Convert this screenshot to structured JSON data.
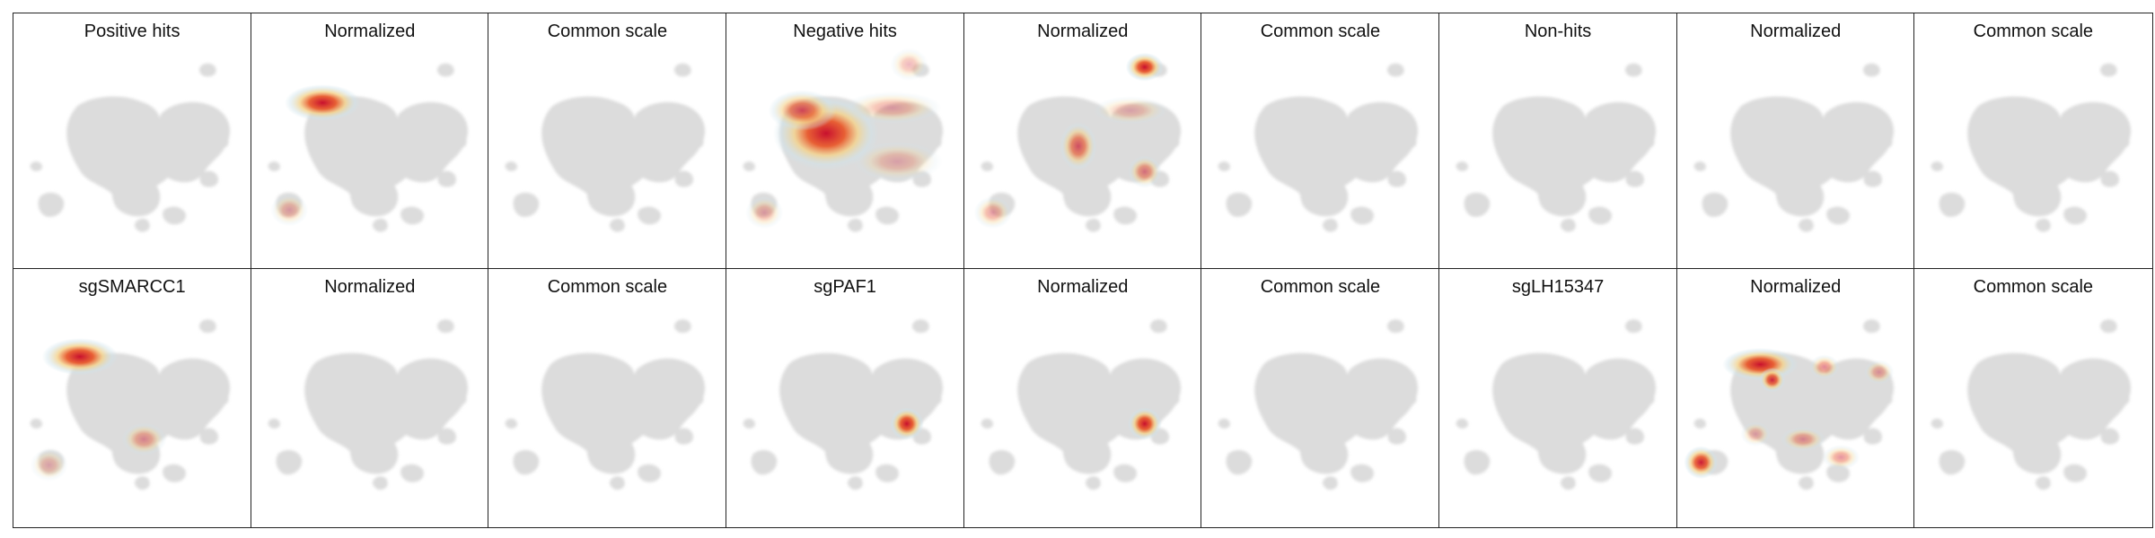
{
  "chart_data": {
    "type": "heatmap",
    "layout": {
      "rows": 2,
      "cols": 9
    },
    "panels": [
      {
        "title": "Positive hits",
        "hotspots": []
      },
      {
        "title": "Normalized",
        "hotspots": [
          {
            "x": 0.3,
            "y": 0.35,
            "intensity": 1.0,
            "rx": 0.1,
            "ry": 0.045
          },
          {
            "x": 0.16,
            "y": 0.77,
            "intensity": 0.35,
            "rx": 0.05,
            "ry": 0.04
          }
        ]
      },
      {
        "title": "Common scale",
        "hotspots": []
      },
      {
        "title": "Negative hits",
        "hotspots": [
          {
            "x": 0.42,
            "y": 0.47,
            "intensity": 1.0,
            "rx": 0.14,
            "ry": 0.09
          },
          {
            "x": 0.32,
            "y": 0.38,
            "intensity": 0.75,
            "rx": 0.09,
            "ry": 0.05
          },
          {
            "x": 0.7,
            "y": 0.37,
            "intensity": 0.35,
            "rx": 0.13,
            "ry": 0.04
          },
          {
            "x": 0.72,
            "y": 0.58,
            "intensity": 0.3,
            "rx": 0.12,
            "ry": 0.05
          },
          {
            "x": 0.16,
            "y": 0.78,
            "intensity": 0.35,
            "rx": 0.05,
            "ry": 0.04
          },
          {
            "x": 0.77,
            "y": 0.2,
            "intensity": 0.2,
            "rx": 0.05,
            "ry": 0.04
          }
        ]
      },
      {
        "title": "Normalized",
        "hotspots": [
          {
            "x": 0.76,
            "y": 0.21,
            "intensity": 1.0,
            "rx": 0.05,
            "ry": 0.035
          },
          {
            "x": 0.48,
            "y": 0.52,
            "intensity": 0.7,
            "rx": 0.05,
            "ry": 0.06
          },
          {
            "x": 0.76,
            "y": 0.62,
            "intensity": 0.55,
            "rx": 0.045,
            "ry": 0.04
          },
          {
            "x": 0.7,
            "y": 0.38,
            "intensity": 0.25,
            "rx": 0.1,
            "ry": 0.035
          },
          {
            "x": 0.12,
            "y": 0.78,
            "intensity": 0.4,
            "rx": 0.05,
            "ry": 0.04
          }
        ]
      },
      {
        "title": "Common scale",
        "hotspots": []
      },
      {
        "title": "Non-hits",
        "hotspots": []
      },
      {
        "title": "Normalized",
        "hotspots": []
      },
      {
        "title": "Common scale",
        "hotspots": []
      },
      {
        "title": "sgSMARCC1",
        "hotspots": [
          {
            "x": 0.28,
            "y": 0.34,
            "intensity": 1.0,
            "rx": 0.1,
            "ry": 0.045
          },
          {
            "x": 0.55,
            "y": 0.66,
            "intensity": 0.45,
            "rx": 0.06,
            "ry": 0.04
          },
          {
            "x": 0.15,
            "y": 0.76,
            "intensity": 0.2,
            "rx": 0.05,
            "ry": 0.04
          }
        ]
      },
      {
        "title": "Normalized",
        "hotspots": []
      },
      {
        "title": "Common scale",
        "hotspots": []
      },
      {
        "title": "sgPAF1",
        "hotspots": [
          {
            "x": 0.76,
            "y": 0.6,
            "intensity": 1.0,
            "rx": 0.045,
            "ry": 0.04
          }
        ]
      },
      {
        "title": "Normalized",
        "hotspots": [
          {
            "x": 0.76,
            "y": 0.6,
            "intensity": 1.0,
            "rx": 0.045,
            "ry": 0.04
          }
        ]
      },
      {
        "title": "Common scale",
        "hotspots": []
      },
      {
        "title": "sgLH15347",
        "hotspots": []
      },
      {
        "title": "Normalized",
        "hotspots": [
          {
            "x": 0.35,
            "y": 0.37,
            "intensity": 1.0,
            "rx": 0.1,
            "ry": 0.04
          },
          {
            "x": 0.4,
            "y": 0.43,
            "intensity": 0.9,
            "rx": 0.035,
            "ry": 0.03
          },
          {
            "x": 0.62,
            "y": 0.38,
            "intensity": 0.5,
            "rx": 0.04,
            "ry": 0.03
          },
          {
            "x": 0.85,
            "y": 0.4,
            "intensity": 0.4,
            "rx": 0.04,
            "ry": 0.03
          },
          {
            "x": 0.53,
            "y": 0.66,
            "intensity": 0.45,
            "rx": 0.06,
            "ry": 0.03
          },
          {
            "x": 0.69,
            "y": 0.73,
            "intensity": 0.45,
            "rx": 0.05,
            "ry": 0.03
          },
          {
            "x": 0.33,
            "y": 0.64,
            "intensity": 0.35,
            "rx": 0.04,
            "ry": 0.03
          },
          {
            "x": 0.1,
            "y": 0.75,
            "intensity": 0.95,
            "rx": 0.045,
            "ry": 0.04
          }
        ]
      },
      {
        "title": "Common scale",
        "hotspots": []
      }
    ],
    "colors": {
      "background_shape": "#dcdcdc",
      "low": "#cfe3ea",
      "mid": "#f4d28a",
      "high": "#c8102e"
    }
  }
}
